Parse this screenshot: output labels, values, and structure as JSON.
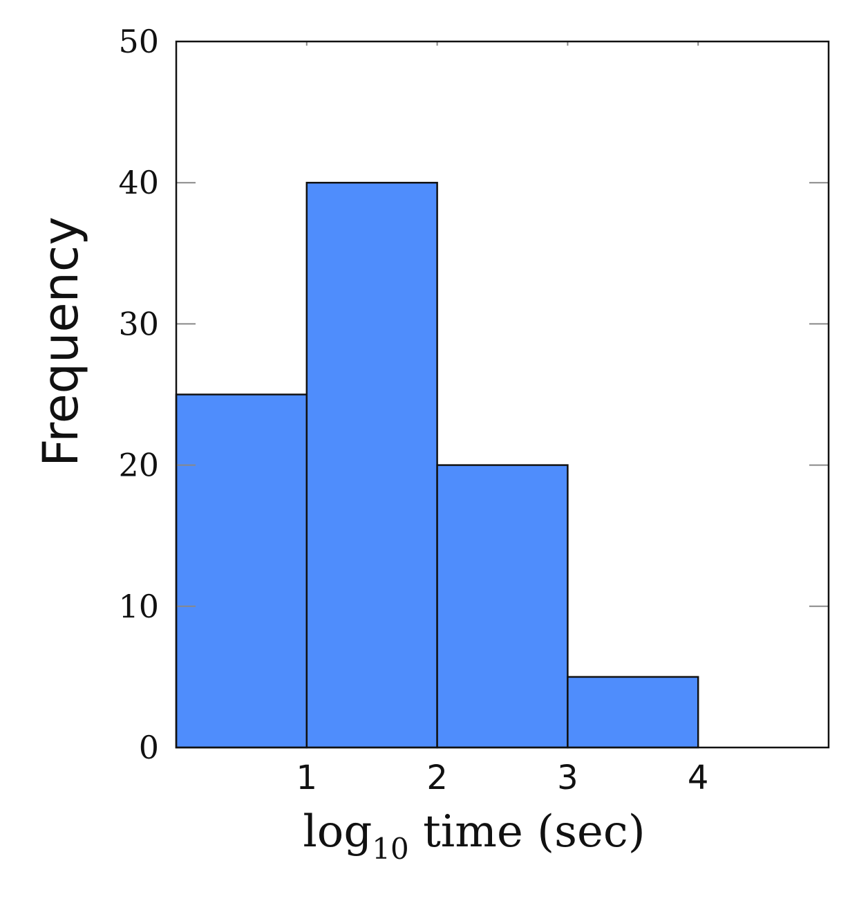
{
  "chart_data": {
    "type": "bar",
    "title": "",
    "xlabel_base": "log",
    "xlabel_subscript": "10",
    "xlabel_rest": " time (sec)",
    "ylabel": "Frequency",
    "bins": [
      {
        "x0": 0,
        "x1": 1,
        "value": 25
      },
      {
        "x0": 1,
        "x1": 2,
        "value": 40
      },
      {
        "x0": 2,
        "x1": 3,
        "value": 20
      },
      {
        "x0": 3,
        "x1": 4,
        "value": 5
      }
    ],
    "xlim": [
      0,
      5
    ],
    "ylim": [
      0,
      50
    ],
    "xticks": [
      1,
      2,
      3,
      4
    ],
    "yticks": [
      0,
      10,
      20,
      30,
      40,
      50
    ],
    "bar_color": "#4f8dfc",
    "edge_color": "#111111",
    "grid": false,
    "legend": "none"
  }
}
